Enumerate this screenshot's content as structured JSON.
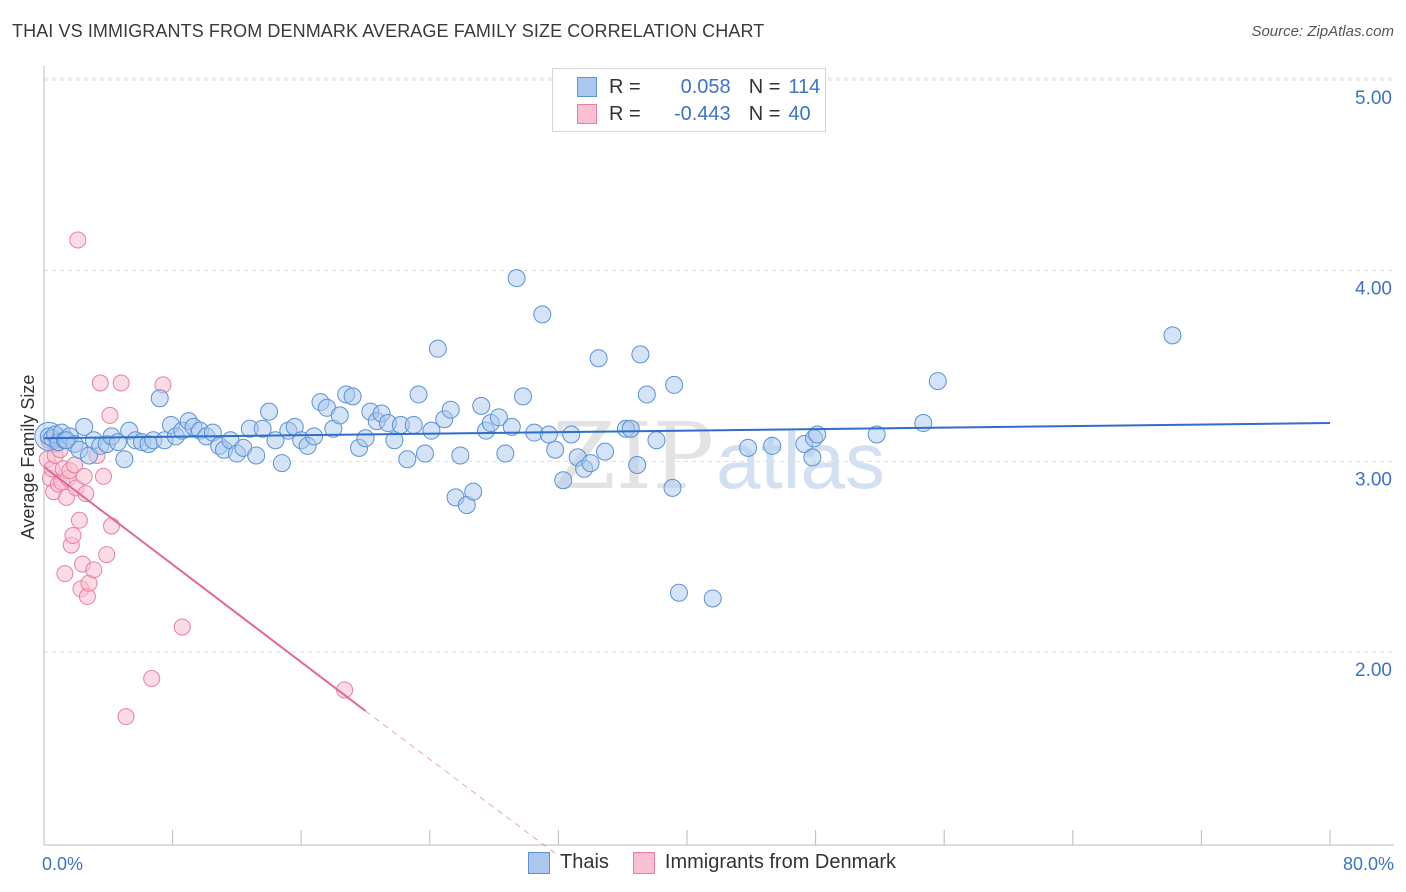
{
  "title": "THAI VS IMMIGRANTS FROM DENMARK AVERAGE FAMILY SIZE CORRELATION CHART",
  "source": "Source: ZipAtlas.com",
  "watermark": {
    "zip": "ZIP",
    "atlas": "atlas"
  },
  "legend_top": {
    "rows": [
      {
        "r_label": "R =",
        "r_value": "0.058",
        "n_label": "N =",
        "n_value": "114"
      },
      {
        "r_label": "R =",
        "r_value": "-0.443",
        "n_label": "N =",
        "n_value": "40"
      }
    ]
  },
  "legend_bottom": [
    "Thais",
    "Immigrants from Denmark"
  ],
  "colors": {
    "thai_fill": "#aac8ee",
    "thai_stroke": "#5b92d6",
    "thai_line": "#2f6fc9",
    "den_fill": "#f8c0d0",
    "den_stroke": "#ea7fa0",
    "den_line": "#e06a95",
    "axis_text": "#3b73c8",
    "grid": "#dddddd"
  },
  "chart_data": {
    "type": "scatter",
    "title": "THAI VS IMMIGRANTS FROM DENMARK AVERAGE FAMILY SIZE CORRELATION CHART",
    "xlabel": "",
    "ylabel": "Average Family Size",
    "xlim": [
      0,
      80
    ],
    "ylim": [
      1.1,
      5.1
    ],
    "x_tick_labels": [
      "0.0%",
      "80.0%"
    ],
    "y_ticks": [
      2.0,
      3.0,
      4.0,
      5.0
    ],
    "y_tick_labels": [
      "2.00",
      "3.00",
      "4.00",
      "5.00"
    ],
    "series": [
      {
        "name": "Thais",
        "r": 0.058,
        "n": 114,
        "trend": {
          "x": [
            0,
            80
          ],
          "y": [
            3.21,
            3.29
          ]
        },
        "points": [
          [
            0.3,
            3.22
          ],
          [
            0.5,
            3.21
          ],
          [
            0.7,
            3.23
          ],
          [
            0.9,
            3.19
          ],
          [
            1.1,
            3.24
          ],
          [
            1.3,
            3.2
          ],
          [
            1.6,
            3.22
          ],
          [
            1.9,
            3.18
          ],
          [
            2.2,
            3.15
          ],
          [
            2.5,
            3.27
          ],
          [
            2.8,
            3.12
          ],
          [
            3.1,
            3.2
          ],
          [
            3.5,
            3.17
          ],
          [
            3.9,
            3.18
          ],
          [
            4.2,
            3.22
          ],
          [
            4.6,
            3.19
          ],
          [
            5.0,
            3.1
          ],
          [
            5.3,
            3.25
          ],
          [
            5.7,
            3.2
          ],
          [
            6.1,
            3.19
          ],
          [
            6.5,
            3.18
          ],
          [
            6.8,
            3.2
          ],
          [
            7.2,
            3.42
          ],
          [
            7.5,
            3.2
          ],
          [
            7.9,
            3.28
          ],
          [
            8.2,
            3.22
          ],
          [
            8.6,
            3.25
          ],
          [
            9.0,
            3.3
          ],
          [
            9.3,
            3.27
          ],
          [
            9.7,
            3.25
          ],
          [
            10.1,
            3.22
          ],
          [
            10.5,
            3.24
          ],
          [
            10.9,
            3.17
          ],
          [
            11.2,
            3.15
          ],
          [
            11.6,
            3.2
          ],
          [
            12.0,
            3.13
          ],
          [
            12.4,
            3.16
          ],
          [
            12.8,
            3.26
          ],
          [
            13.2,
            3.12
          ],
          [
            13.6,
            3.26
          ],
          [
            14.0,
            3.35
          ],
          [
            14.4,
            3.2
          ],
          [
            14.8,
            3.08
          ],
          [
            15.2,
            3.25
          ],
          [
            15.6,
            3.27
          ],
          [
            16.0,
            3.2
          ],
          [
            16.4,
            3.17
          ],
          [
            16.8,
            3.22
          ],
          [
            17.2,
            3.4
          ],
          [
            17.6,
            3.37
          ],
          [
            18.0,
            3.26
          ],
          [
            18.4,
            3.33
          ],
          [
            18.8,
            3.44
          ],
          [
            19.2,
            3.43
          ],
          [
            19.6,
            3.16
          ],
          [
            20.0,
            3.21
          ],
          [
            20.3,
            3.35
          ],
          [
            20.7,
            3.3
          ],
          [
            21.0,
            3.34
          ],
          [
            21.4,
            3.29
          ],
          [
            21.8,
            3.2
          ],
          [
            22.2,
            3.28
          ],
          [
            22.6,
            3.1
          ],
          [
            23.0,
            3.28
          ],
          [
            23.3,
            3.44
          ],
          [
            23.7,
            3.13
          ],
          [
            24.1,
            3.25
          ],
          [
            24.5,
            3.68
          ],
          [
            24.9,
            3.31
          ],
          [
            25.3,
            3.36
          ],
          [
            25.6,
            2.9
          ],
          [
            25.9,
            3.12
          ],
          [
            26.3,
            2.86
          ],
          [
            26.7,
            2.93
          ],
          [
            27.2,
            3.38
          ],
          [
            27.5,
            3.25
          ],
          [
            27.8,
            3.29
          ],
          [
            28.3,
            3.32
          ],
          [
            28.7,
            3.13
          ],
          [
            29.1,
            3.27
          ],
          [
            29.4,
            4.05
          ],
          [
            29.8,
            3.43
          ],
          [
            30.5,
            3.24
          ],
          [
            31.0,
            3.86
          ],
          [
            31.4,
            3.23
          ],
          [
            31.8,
            3.15
          ],
          [
            32.3,
            2.99
          ],
          [
            32.8,
            3.23
          ],
          [
            33.2,
            3.11
          ],
          [
            33.6,
            3.05
          ],
          [
            34.0,
            3.08
          ],
          [
            34.5,
            3.63
          ],
          [
            34.9,
            3.14
          ],
          [
            36.2,
            3.26
          ],
          [
            36.5,
            3.26
          ],
          [
            36.9,
            3.07
          ],
          [
            37.1,
            3.65
          ],
          [
            37.5,
            3.44
          ],
          [
            38.1,
            3.2
          ],
          [
            39.1,
            2.95
          ],
          [
            39.2,
            3.49
          ],
          [
            39.5,
            2.4
          ],
          [
            41.6,
            2.37
          ],
          [
            43.8,
            3.16
          ],
          [
            45.3,
            3.17
          ],
          [
            47.3,
            3.18
          ],
          [
            47.8,
            3.11
          ],
          [
            47.9,
            3.21
          ],
          [
            48.1,
            3.23
          ],
          [
            51.8,
            3.23
          ],
          [
            54.7,
            3.29
          ],
          [
            55.6,
            3.51
          ],
          [
            70.2,
            3.75
          ],
          [
            1.4,
            3.2
          ]
        ]
      },
      {
        "name": "Immigrants from Denmark",
        "r": -0.443,
        "n": 40,
        "trend": {
          "x": [
            0,
            20
          ],
          "y": [
            3.06,
            1.78
          ]
        },
        "trend_dashed": {
          "x": [
            20,
            32
          ],
          "y": [
            1.78,
            1.02
          ]
        },
        "points": [
          [
            0.2,
            3.1
          ],
          [
            0.3,
            3.2
          ],
          [
            0.4,
            3.0
          ],
          [
            0.5,
            3.05
          ],
          [
            0.6,
            2.93
          ],
          [
            0.7,
            3.12
          ],
          [
            0.8,
            3.18
          ],
          [
            0.9,
            2.97
          ],
          [
            1.0,
            3.15
          ],
          [
            1.1,
            2.98
          ],
          [
            1.2,
            3.05
          ],
          [
            1.3,
            2.5
          ],
          [
            1.4,
            2.9
          ],
          [
            1.5,
            3.0
          ],
          [
            1.6,
            3.04
          ],
          [
            1.7,
            2.65
          ],
          [
            1.8,
            2.7
          ],
          [
            1.9,
            3.07
          ],
          [
            2.0,
            2.95
          ],
          [
            2.2,
            2.78
          ],
          [
            2.3,
            2.42
          ],
          [
            2.4,
            2.55
          ],
          [
            2.5,
            3.01
          ],
          [
            2.6,
            2.92
          ],
          [
            2.7,
            2.38
          ],
          [
            2.8,
            2.45
          ],
          [
            3.1,
            2.52
          ],
          [
            3.3,
            3.12
          ],
          [
            3.5,
            3.5
          ],
          [
            3.7,
            3.01
          ],
          [
            3.9,
            2.6
          ],
          [
            4.1,
            3.33
          ],
          [
            4.2,
            2.75
          ],
          [
            4.8,
            3.5
          ],
          [
            5.1,
            1.75
          ],
          [
            6.7,
            1.95
          ],
          [
            7.4,
            3.49
          ],
          [
            8.6,
            2.22
          ],
          [
            18.7,
            1.89
          ],
          [
            2.1,
            4.25
          ]
        ]
      }
    ]
  }
}
